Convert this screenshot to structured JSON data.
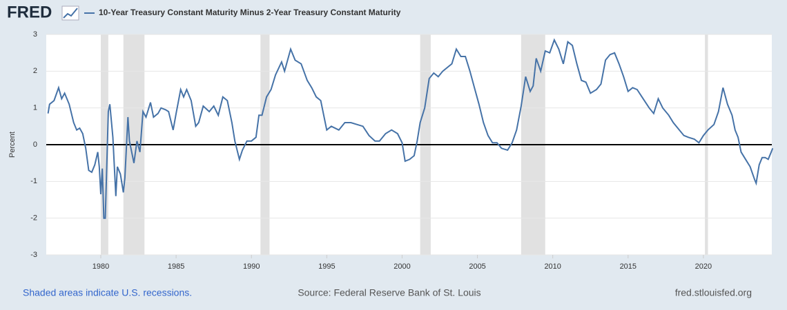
{
  "header": {
    "logo": "FRED"
  },
  "chart_data": {
    "type": "line",
    "y_label": "Percent",
    "x": [
      1976.5,
      1976.6,
      1976.9,
      1977.2,
      1977.4,
      1977.6,
      1977.9,
      1978.2,
      1978.4,
      1978.6,
      1978.8,
      1979.0,
      1979.2,
      1979.4,
      1979.6,
      1979.8,
      1979.9,
      1980.0,
      1980.1,
      1980.2,
      1980.3,
      1980.5,
      1980.6,
      1980.8,
      1981.0,
      1981.1,
      1981.3,
      1981.5,
      1981.6,
      1981.8,
      1981.9,
      1982.2,
      1982.4,
      1982.6,
      1982.8,
      1983.0,
      1983.3,
      1983.5,
      1983.8,
      1984.0,
      1984.3,
      1984.5,
      1984.8,
      1985.0,
      1985.3,
      1985.5,
      1985.7,
      1986.0,
      1986.3,
      1986.5,
      1986.8,
      1987.2,
      1987.5,
      1987.8,
      1988.1,
      1988.4,
      1988.7,
      1988.9,
      1989.2,
      1989.4,
      1989.7,
      1990.0,
      1990.3,
      1990.5,
      1990.7,
      1991.0,
      1991.3,
      1991.6,
      1992.0,
      1992.2,
      1992.6,
      1992.9,
      1993.3,
      1993.7,
      1994.0,
      1994.3,
      1994.6,
      1995.0,
      1995.3,
      1995.8,
      1996.2,
      1996.6,
      1997.0,
      1997.4,
      1997.8,
      1998.2,
      1998.5,
      1998.9,
      1999.3,
      1999.7,
      2000.0,
      2000.2,
      2000.5,
      2000.8,
      2001.0,
      2001.2,
      2001.5,
      2001.8,
      2002.1,
      2002.4,
      2002.7,
      2003.0,
      2003.3,
      2003.6,
      2003.9,
      2004.2,
      2004.5,
      2004.8,
      2005.1,
      2005.4,
      2005.7,
      2006.0,
      2006.3,
      2006.6,
      2007.0,
      2007.3,
      2007.6,
      2007.9,
      2008.2,
      2008.5,
      2008.7,
      2008.9,
      2009.2,
      2009.5,
      2009.8,
      2010.1,
      2010.4,
      2010.7,
      2011.0,
      2011.3,
      2011.6,
      2011.9,
      2012.2,
      2012.5,
      2012.9,
      2013.2,
      2013.5,
      2013.8,
      2014.1,
      2014.4,
      2014.7,
      2015.0,
      2015.3,
      2015.6,
      2016.0,
      2016.4,
      2016.7,
      2017.0,
      2017.3,
      2017.7,
      2018.0,
      2018.3,
      2018.7,
      2019.0,
      2019.4,
      2019.7,
      2020.0,
      2020.3,
      2020.7,
      2021.0,
      2021.3,
      2021.6,
      2021.9,
      2022.1,
      2022.3,
      2022.5,
      2022.8,
      2023.1,
      2023.4,
      2023.5,
      2023.7,
      2023.9,
      2024.1,
      2024.3,
      2024.5,
      2024.6
    ],
    "series": [
      {
        "name": "10-Year Treasury Constant Maturity Minus 2-Year Treasury Constant Maturity",
        "color": "#4572a7",
        "values": [
          0.85,
          1.1,
          1.2,
          1.55,
          1.25,
          1.4,
          1.1,
          0.6,
          0.4,
          0.45,
          0.3,
          -0.1,
          -0.7,
          -0.75,
          -0.55,
          -0.2,
          -0.6,
          -1.35,
          -0.65,
          -2.0,
          -2.0,
          0.9,
          1.1,
          0.2,
          -1.4,
          -0.6,
          -0.8,
          -1.3,
          -0.9,
          0.75,
          0.1,
          -0.5,
          0.1,
          -0.2,
          0.9,
          0.75,
          1.15,
          0.75,
          0.85,
          1.0,
          0.95,
          0.9,
          0.4,
          0.85,
          1.5,
          1.3,
          1.5,
          1.2,
          0.5,
          0.6,
          1.05,
          0.9,
          1.05,
          0.8,
          1.3,
          1.2,
          0.6,
          0.1,
          -0.4,
          -0.15,
          0.1,
          0.1,
          0.2,
          0.8,
          0.8,
          1.3,
          1.5,
          1.9,
          2.25,
          2.0,
          2.6,
          2.3,
          2.2,
          1.75,
          1.55,
          1.3,
          1.2,
          0.4,
          0.5,
          0.4,
          0.6,
          0.6,
          0.55,
          0.5,
          0.25,
          0.1,
          0.1,
          0.3,
          0.4,
          0.3,
          0.05,
          -0.45,
          -0.4,
          -0.3,
          0.1,
          0.6,
          1.0,
          1.8,
          1.95,
          1.85,
          2.0,
          2.1,
          2.2,
          2.6,
          2.4,
          2.4,
          2.0,
          1.55,
          1.1,
          0.6,
          0.25,
          0.05,
          0.05,
          -0.1,
          -0.15,
          0.05,
          0.4,
          1.05,
          1.85,
          1.45,
          1.6,
          2.35,
          2.0,
          2.55,
          2.5,
          2.85,
          2.6,
          2.2,
          2.8,
          2.7,
          2.2,
          1.75,
          1.7,
          1.4,
          1.5,
          1.65,
          2.3,
          2.45,
          2.5,
          2.2,
          1.85,
          1.45,
          1.55,
          1.5,
          1.25,
          1.0,
          0.85,
          1.25,
          1.0,
          0.8,
          0.6,
          0.45,
          0.25,
          0.2,
          0.15,
          0.05,
          0.25,
          0.4,
          0.55,
          0.9,
          1.55,
          1.1,
          0.8,
          0.4,
          0.2,
          -0.2,
          -0.4,
          -0.6,
          -0.95,
          -1.05,
          -0.55,
          -0.35,
          -0.35,
          -0.4,
          -0.2,
          -0.1
        ]
      }
    ],
    "recessions": [
      [
        1980.0,
        1980.5
      ],
      [
        1981.5,
        1982.9
      ],
      [
        1990.6,
        1991.2
      ],
      [
        2001.2,
        2001.9
      ],
      [
        2007.9,
        2009.5
      ],
      [
        2020.1,
        2020.3
      ]
    ],
    "xlim": [
      1976.38,
      2024.54
    ],
    "ylim": [
      -3,
      3
    ],
    "xticks": [
      1980,
      1985,
      1990,
      1995,
      2000,
      2005,
      2010,
      2015,
      2020
    ],
    "yticks": [
      -3,
      -2,
      -1,
      0,
      1,
      2,
      3
    ],
    "grid": true
  },
  "footer": {
    "left": "Shaded areas indicate U.S. recessions.",
    "center": "Source: Federal Reserve Bank of St. Louis",
    "right": "fred.stlouisfed.org"
  }
}
